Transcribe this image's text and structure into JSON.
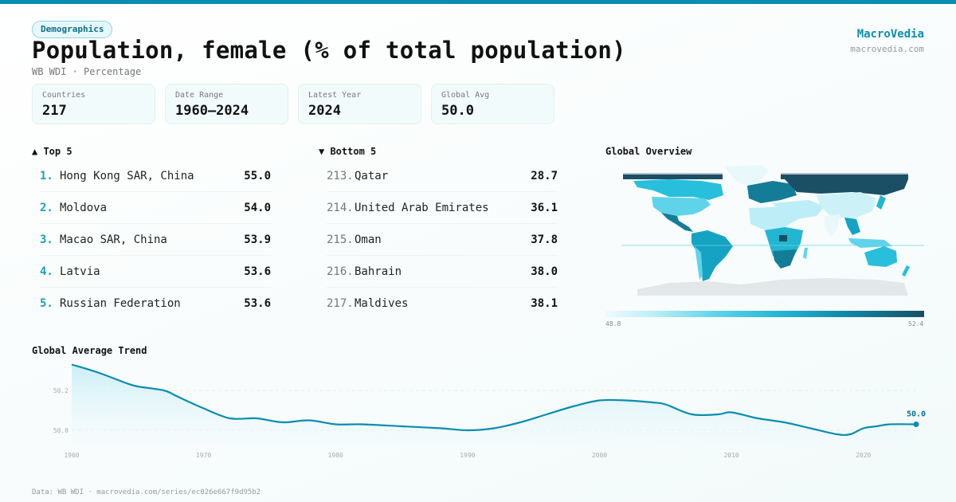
{
  "header": {
    "tag": "Demographics",
    "title": "Population, female (% of total population)",
    "subtitle": "WB WDI · Percentage",
    "brand": "MacroVedia",
    "brand_url": "macrovedia.com"
  },
  "stats": [
    {
      "label": "Countries",
      "value": "217"
    },
    {
      "label": "Date Range",
      "value": "1960–2024"
    },
    {
      "label": "Latest Year",
      "value": "2024"
    },
    {
      "label": "Global Avg",
      "value": "50.0"
    }
  ],
  "top5": {
    "title": "▲ Top 5",
    "items": [
      {
        "rank": "1.",
        "name": "Hong Kong SAR, China",
        "value": "55.0"
      },
      {
        "rank": "2.",
        "name": "Moldova",
        "value": "54.0"
      },
      {
        "rank": "3.",
        "name": "Macao SAR, China",
        "value": "53.9"
      },
      {
        "rank": "4.",
        "name": "Latvia",
        "value": "53.6"
      },
      {
        "rank": "5.",
        "name": "Russian Federation",
        "value": "53.6"
      }
    ]
  },
  "bottom5": {
    "title": "▼ Bottom 5",
    "items": [
      {
        "rank": "213.",
        "name": "Qatar",
        "value": "28.7"
      },
      {
        "rank": "214.",
        "name": "United Arab Emirates",
        "value": "36.1"
      },
      {
        "rank": "215.",
        "name": "Oman",
        "value": "37.8"
      },
      {
        "rank": "216.",
        "name": "Bahrain",
        "value": "38.0"
      },
      {
        "rank": "217.",
        "name": "Maldives",
        "value": "38.1"
      }
    ]
  },
  "map": {
    "title": "Global Overview",
    "legend_min": "48.8",
    "legend_max": "52.4",
    "colors": {
      "low": "#eefbfd",
      "mid": "#22b6d2",
      "high": "#1a4f64",
      "nodata": "#e4e7ea"
    }
  },
  "chart_data": {
    "type": "area",
    "title": "Global Average Trend",
    "x": [
      1960,
      1962,
      1964,
      1965,
      1967,
      1968,
      1970,
      1972,
      1974,
      1976,
      1978,
      1980,
      1982,
      1985,
      1988,
      1990,
      1992,
      1994,
      1996,
      1998,
      2000,
      2002,
      2004,
      2005,
      2007,
      2009,
      2010,
      2012,
      2014,
      2016,
      2018,
      2019,
      2020,
      2021,
      2022,
      2024
    ],
    "y": [
      50.33,
      50.29,
      50.24,
      50.22,
      50.2,
      50.17,
      50.11,
      50.06,
      50.06,
      50.04,
      50.05,
      50.03,
      50.03,
      50.02,
      50.01,
      50.0,
      50.01,
      50.04,
      50.08,
      50.12,
      50.15,
      50.15,
      50.14,
      50.13,
      50.08,
      50.08,
      50.09,
      50.06,
      50.04,
      50.01,
      49.98,
      49.98,
      50.01,
      50.02,
      50.03,
      50.03
    ],
    "yticks": [
      "50.2",
      "50.0"
    ],
    "ytick_values": [
      50.2,
      50.0
    ],
    "xticks": [
      "1960",
      "1970",
      "1980",
      "1990",
      "2000",
      "2010",
      "2020"
    ],
    "xtick_values": [
      1960,
      1970,
      1980,
      1990,
      2000,
      2010,
      2020
    ],
    "xlim": [
      1960,
      2024
    ],
    "ylim": [
      49.92,
      50.36
    ],
    "last_label": "50.0",
    "color": "#0a8db0"
  },
  "footer": "Data: WB WDI · macrovedia.com/series/ec026e667f9d95b2"
}
